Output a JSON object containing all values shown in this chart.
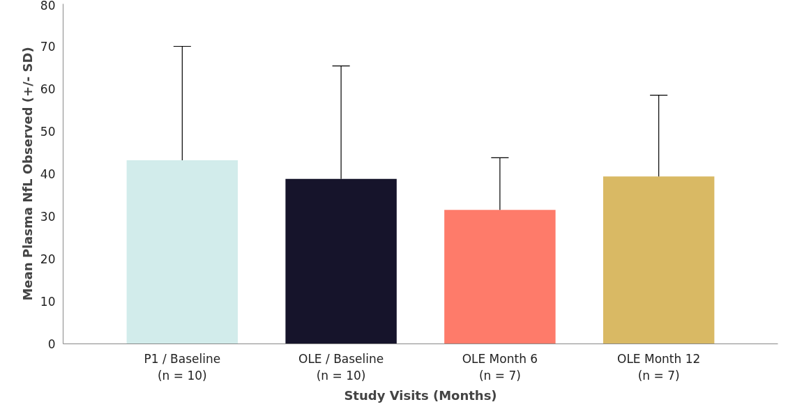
{
  "chart_data": {
    "type": "bar",
    "xlabel": "Study Visits (Months)",
    "ylabel": "Mean Plasma NfL Observed (+/- SD)",
    "categories": [
      "P1 / Baseline\n(n = 10)",
      "OLE / Baseline\n(n = 10)",
      "OLE Month 6\n(n = 7)",
      "OLE Month 12\n(n = 7)"
    ],
    "values": [
      43.2,
      38.8,
      31.5,
      39.4
    ],
    "colors": [
      "#d2eceb",
      "#16142b",
      "#fe7b6a",
      "#d9b964"
    ],
    "errors": [
      [
        43.2,
        70.0
      ],
      [
        38.8,
        65.4
      ],
      [
        31.5,
        43.8
      ],
      [
        39.4,
        58.5
      ]
    ],
    "ylim": [
      0,
      80
    ],
    "yticks": [
      0,
      10,
      20,
      30,
      40,
      50,
      60,
      70,
      80
    ],
    "grid": false
  }
}
